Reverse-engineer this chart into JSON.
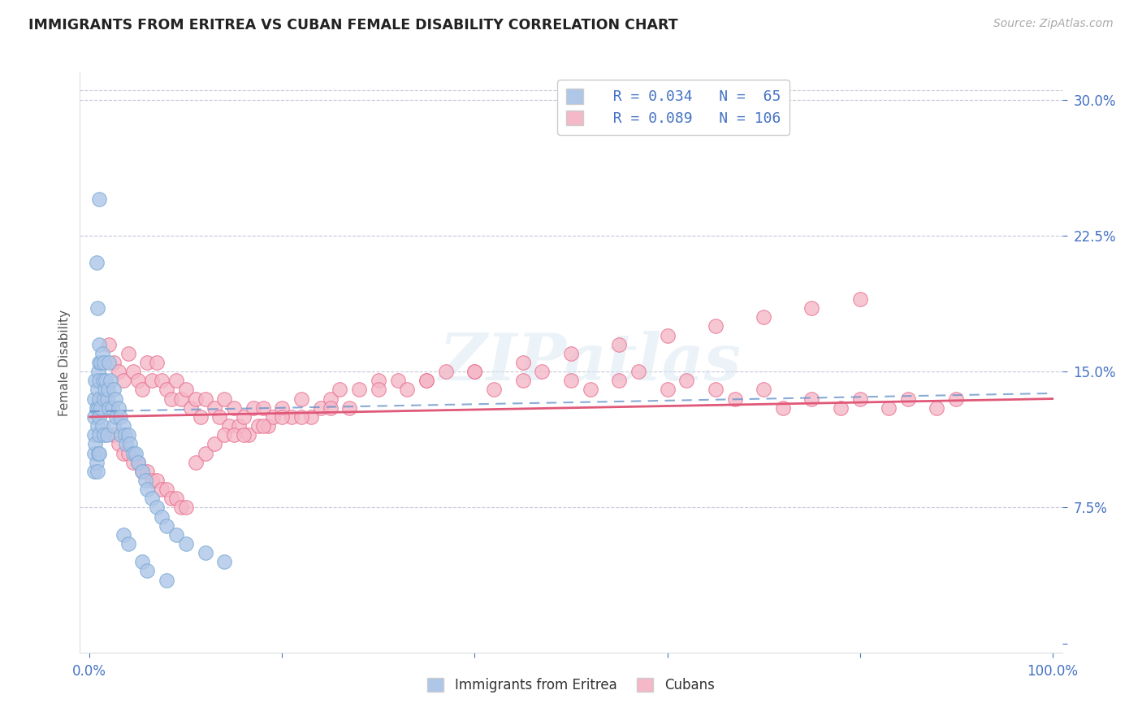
{
  "title": "IMMIGRANTS FROM ERITREA VS CUBAN FEMALE DISABILITY CORRELATION CHART",
  "source": "Source: ZipAtlas.com",
  "ylabel": "Female Disability",
  "watermark": "ZIPatlas",
  "legend_eritrea_r": "R = 0.034",
  "legend_eritrea_n": "N =  65",
  "legend_cubans_r": "R = 0.089",
  "legend_cubans_n": "N = 106",
  "eritrea_color": "#aec6e8",
  "eritrea_edge": "#7aaad4",
  "cubans_color": "#f5b8c8",
  "cubans_edge": "#e87090",
  "eritrea_line_color": "#6090c8",
  "cubans_line_color": "#e05878",
  "axis_color": "#4472c4",
  "background_color": "#ffffff",
  "grid_color": "#c8c8d8",
  "eritrea_x": [
    0.005,
    0.005,
    0.005,
    0.005,
    0.005,
    0.006,
    0.006,
    0.007,
    0.007,
    0.008,
    0.008,
    0.008,
    0.009,
    0.009,
    0.009,
    0.01,
    0.01,
    0.01,
    0.01,
    0.01,
    0.01,
    0.01,
    0.012,
    0.012,
    0.013,
    0.013,
    0.014,
    0.015,
    0.015,
    0.015,
    0.016,
    0.017,
    0.018,
    0.018,
    0.019,
    0.02,
    0.02,
    0.022,
    0.023,
    0.025,
    0.025,
    0.027,
    0.028,
    0.03,
    0.032,
    0.033,
    0.035,
    0.037,
    0.038,
    0.04,
    0.042,
    0.045,
    0.048,
    0.05,
    0.055,
    0.058,
    0.06,
    0.065,
    0.07,
    0.075,
    0.08,
    0.09,
    0.1,
    0.12,
    0.14
  ],
  "eritrea_y": [
    0.135,
    0.125,
    0.115,
    0.105,
    0.095,
    0.145,
    0.11,
    0.13,
    0.1,
    0.14,
    0.12,
    0.095,
    0.15,
    0.13,
    0.105,
    0.165,
    0.155,
    0.145,
    0.135,
    0.125,
    0.115,
    0.105,
    0.155,
    0.13,
    0.16,
    0.12,
    0.145,
    0.155,
    0.135,
    0.115,
    0.14,
    0.145,
    0.135,
    0.115,
    0.14,
    0.155,
    0.13,
    0.145,
    0.13,
    0.14,
    0.12,
    0.135,
    0.125,
    0.13,
    0.125,
    0.115,
    0.12,
    0.115,
    0.11,
    0.115,
    0.11,
    0.105,
    0.105,
    0.1,
    0.095,
    0.09,
    0.085,
    0.08,
    0.075,
    0.07,
    0.065,
    0.06,
    0.055,
    0.05,
    0.045
  ],
  "eritrea_y_outliers": [
    0.245,
    0.21,
    0.185,
    0.06,
    0.055,
    0.045,
    0.04,
    0.035
  ],
  "eritrea_x_outliers": [
    0.01,
    0.007,
    0.008,
    0.035,
    0.04,
    0.055,
    0.06,
    0.08
  ],
  "cubans_x": [
    0.02,
    0.025,
    0.03,
    0.035,
    0.04,
    0.045,
    0.05,
    0.055,
    0.06,
    0.065,
    0.07,
    0.075,
    0.08,
    0.085,
    0.09,
    0.095,
    0.1,
    0.105,
    0.11,
    0.115,
    0.12,
    0.13,
    0.135,
    0.14,
    0.145,
    0.15,
    0.155,
    0.16,
    0.165,
    0.17,
    0.175,
    0.18,
    0.185,
    0.19,
    0.2,
    0.21,
    0.22,
    0.23,
    0.24,
    0.25,
    0.26,
    0.27,
    0.28,
    0.3,
    0.32,
    0.33,
    0.35,
    0.37,
    0.4,
    0.42,
    0.45,
    0.47,
    0.5,
    0.52,
    0.55,
    0.57,
    0.6,
    0.62,
    0.65,
    0.67,
    0.7,
    0.72,
    0.75,
    0.78,
    0.8,
    0.83,
    0.85,
    0.88,
    0.9,
    0.025,
    0.03,
    0.035,
    0.04,
    0.045,
    0.05,
    0.055,
    0.06,
    0.065,
    0.07,
    0.075,
    0.08,
    0.085,
    0.09,
    0.095,
    0.1,
    0.11,
    0.12,
    0.13,
    0.14,
    0.15,
    0.16,
    0.18,
    0.2,
    0.22,
    0.25,
    0.3,
    0.35,
    0.4,
    0.45,
    0.5,
    0.55,
    0.6,
    0.65,
    0.7,
    0.75,
    0.8
  ],
  "cubans_y": [
    0.165,
    0.155,
    0.15,
    0.145,
    0.16,
    0.15,
    0.145,
    0.14,
    0.155,
    0.145,
    0.155,
    0.145,
    0.14,
    0.135,
    0.145,
    0.135,
    0.14,
    0.13,
    0.135,
    0.125,
    0.135,
    0.13,
    0.125,
    0.135,
    0.12,
    0.13,
    0.12,
    0.125,
    0.115,
    0.13,
    0.12,
    0.13,
    0.12,
    0.125,
    0.13,
    0.125,
    0.135,
    0.125,
    0.13,
    0.135,
    0.14,
    0.13,
    0.14,
    0.145,
    0.145,
    0.14,
    0.145,
    0.15,
    0.15,
    0.14,
    0.145,
    0.15,
    0.145,
    0.14,
    0.145,
    0.15,
    0.14,
    0.145,
    0.14,
    0.135,
    0.14,
    0.13,
    0.135,
    0.13,
    0.135,
    0.13,
    0.135,
    0.13,
    0.135,
    0.115,
    0.11,
    0.105,
    0.105,
    0.1,
    0.1,
    0.095,
    0.095,
    0.09,
    0.09,
    0.085,
    0.085,
    0.08,
    0.08,
    0.075,
    0.075,
    0.1,
    0.105,
    0.11,
    0.115,
    0.115,
    0.115,
    0.12,
    0.125,
    0.125,
    0.13,
    0.14,
    0.145,
    0.15,
    0.155,
    0.16,
    0.165,
    0.17,
    0.175,
    0.18,
    0.185,
    0.19
  ],
  "eritrea_trendline": [
    0.128,
    0.138
  ],
  "cubans_trendline": [
    0.125,
    0.135
  ],
  "xlim": [
    0.0,
    1.0
  ],
  "ylim": [
    0.0,
    0.3
  ],
  "yticks": [
    0.0,
    0.075,
    0.15,
    0.225,
    0.3
  ],
  "ytick_labels": [
    "",
    "7.5%",
    "15.0%",
    "22.5%",
    "30.0%"
  ],
  "xtick_labels": [
    "0.0%",
    "",
    "",
    "",
    "",
    "100.0%"
  ]
}
